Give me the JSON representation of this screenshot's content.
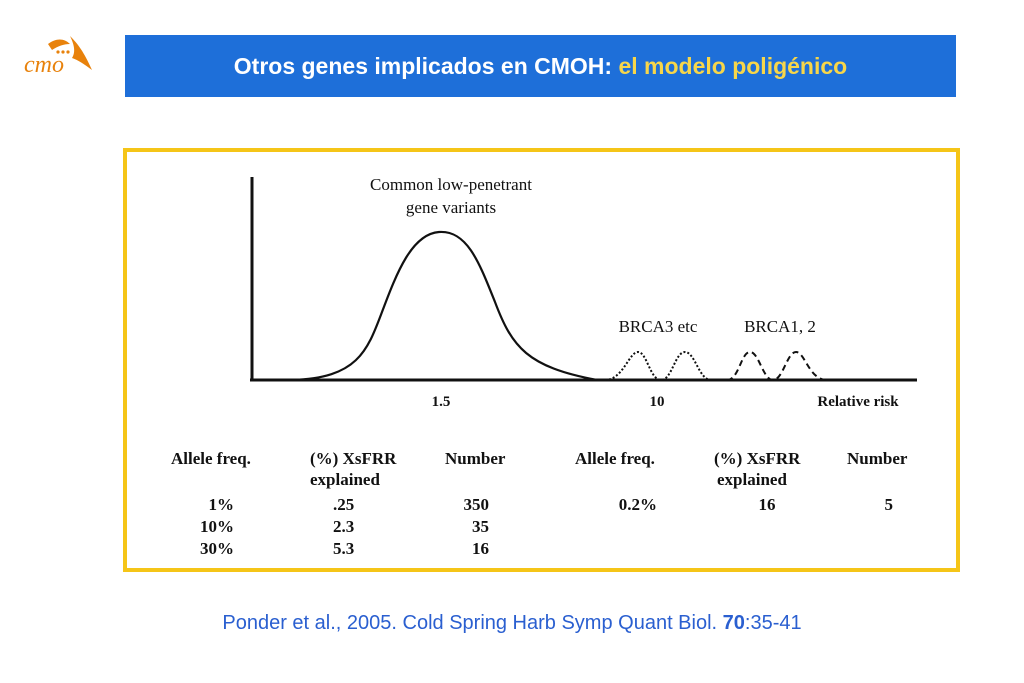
{
  "logo": {
    "text": "cmo",
    "accent_color": "#e8820c"
  },
  "title": {
    "main": "Otros genes implicados en CMOH:",
    "highlight": "el modelo poligénico",
    "bg_color": "#1e6fd9",
    "highlight_color": "#f7d64a"
  },
  "figure": {
    "labels": {
      "common": "Common low-penetrant",
      "common_line2": "gene variants",
      "brca3": "BRCA3 etc",
      "brca12": "BRCA1, 2",
      "tick_1_5": "1.5",
      "tick_10": "10",
      "axis": "Relative risk"
    },
    "table_left": {
      "headers": [
        "Allele freq.",
        "(%) XsFRR",
        "explained",
        "Number"
      ],
      "rows": [
        [
          "1%",
          ".25",
          "350"
        ],
        [
          "10%",
          "2.3",
          "35"
        ],
        [
          "30%",
          "5.3",
          "16"
        ]
      ]
    },
    "table_right": {
      "headers": [
        "Allele freq.",
        "(%) XsFRR",
        "explained",
        "Number"
      ],
      "rows": [
        [
          "0.2%",
          "16",
          "5"
        ]
      ]
    },
    "border_color": "#f5c518"
  },
  "citation": {
    "prefix": "Ponder et al., 2005. Cold Spring Harb Symp Quant Biol. ",
    "volume": "70",
    "pages": ":35-41"
  }
}
